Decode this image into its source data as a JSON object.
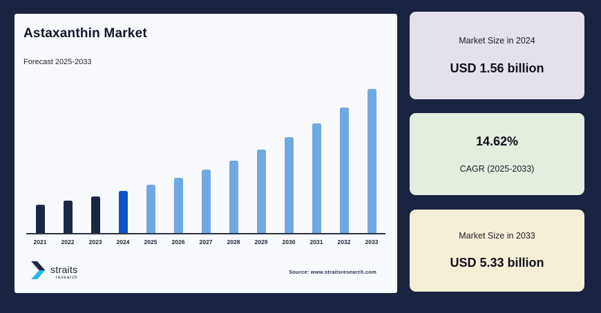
{
  "page": {
    "background": "#1A2340",
    "card_background": "#F8FAFD"
  },
  "chart_card": {
    "title": "Astaxanthin Market",
    "subtitle": "Forecast 2025-2033",
    "source": "Source: www.straitsresearch.com",
    "logo": {
      "name": "straits",
      "sub": "research"
    }
  },
  "chart_data": {
    "type": "bar",
    "title": "Astaxanthin Market",
    "subtitle": "Forecast 2025-2033",
    "unit": "USD billion",
    "categories": [
      "2021",
      "2022",
      "2023",
      "2024",
      "2025",
      "2026",
      "2027",
      "2028",
      "2029",
      "2030",
      "2031",
      "2032",
      "2033"
    ],
    "values": [
      1.04,
      1.19,
      1.36,
      1.56,
      1.79,
      2.05,
      2.35,
      2.69,
      3.09,
      3.54,
      4.06,
      4.65,
      5.33
    ],
    "bar_periods": [
      "historical",
      "historical",
      "historical",
      "base_year",
      "forecast",
      "forecast",
      "forecast",
      "forecast",
      "forecast",
      "forecast",
      "forecast",
      "forecast",
      "forecast"
    ],
    "bar_colors": {
      "historical": "#1B2845",
      "base_year": "#0B55C9",
      "forecast": "#6FA9E3"
    },
    "xlabel": "",
    "ylabel": "",
    "ylim": [
      0,
      5.5
    ],
    "grid": false,
    "legend": "none",
    "axis_color": "#2E3240"
  },
  "panels": [
    {
      "label": "Market Size in 2024",
      "value": "USD 1.56 billion",
      "bg": "#E5E1EA"
    },
    {
      "value": "14.62%",
      "label": "CAGR (2025-2033)",
      "bg": "#E4EEDE"
    },
    {
      "label": "Market Size in 2033",
      "value": "USD 5.33 billion",
      "bg": "#F6EFD8"
    }
  ]
}
